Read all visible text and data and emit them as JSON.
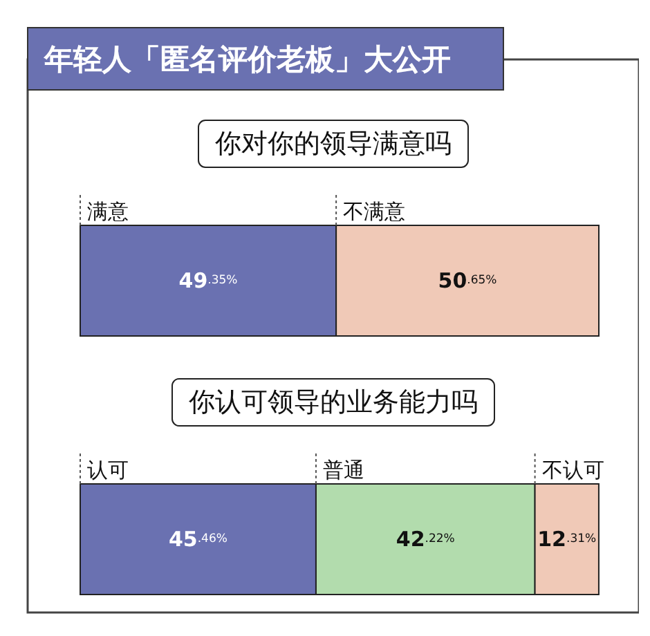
{
  "chart_data": [
    {
      "type": "other",
      "title": "年轻人「匿名评价老板」大公开"
    },
    {
      "type": "bar",
      "title": "你对你的领导满意吗",
      "orientation": "horizontal",
      "stacked": true,
      "categories": [
        null
      ],
      "xlim": [
        0,
        100
      ],
      "legend": false,
      "series": [
        {
          "name": "满意",
          "color": "#6a71b1",
          "values": [
            49.35
          ],
          "value_labels": [
            "49.35%"
          ]
        },
        {
          "name": "不满意",
          "color": "#f0c9b7",
          "values": [
            50.65
          ],
          "value_labels": [
            "50.65%"
          ]
        }
      ]
    },
    {
      "type": "bar",
      "title": "你认可领导的业务能力吗",
      "orientation": "horizontal",
      "stacked": true,
      "categories": [
        null
      ],
      "xlim": [
        0,
        100
      ],
      "legend": false,
      "series": [
        {
          "name": "认可",
          "color": "#6a71b1",
          "values": [
            45.46
          ],
          "value_labels": [
            "45.46%"
          ]
        },
        {
          "name": "普通",
          "color": "#b2dcad",
          "values": [
            42.22
          ],
          "value_labels": [
            "42.22%"
          ]
        },
        {
          "name": "不认可",
          "color": "#f0c9b7",
          "values": [
            12.31
          ],
          "value_labels": [
            "12.31%"
          ]
        }
      ]
    }
  ]
}
